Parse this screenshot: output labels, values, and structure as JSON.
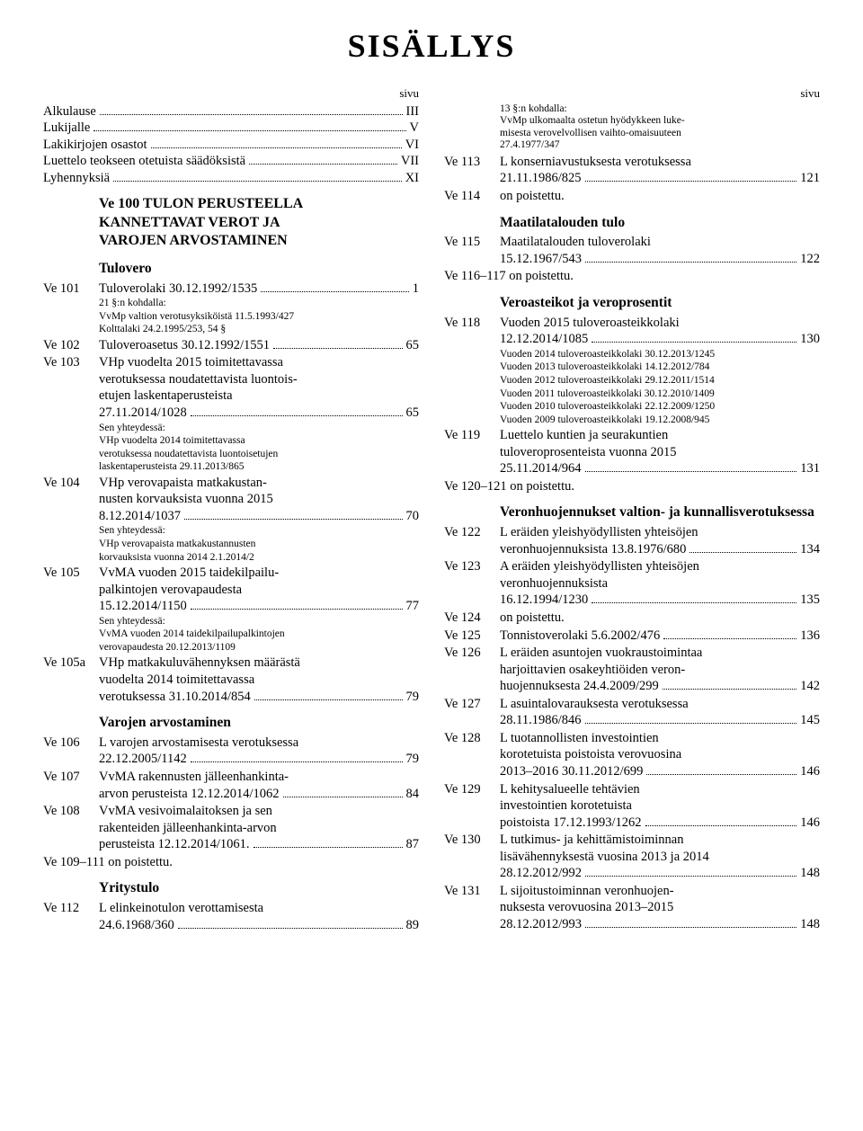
{
  "title": "SISÄLLYS",
  "sivu_label": "sivu",
  "front": [
    {
      "label": "Alkulause",
      "page": "III"
    },
    {
      "label": "Lukijalle",
      "page": "V"
    },
    {
      "label": "Lakikirjojen osastot",
      "page": "VI"
    },
    {
      "label": "Luettelo teokseen otetuista säädöksistä",
      "page": "VII"
    },
    {
      "label": "Lyhennyksiä",
      "page": "XI"
    }
  ],
  "left": {
    "chapter_lines": [
      "Ve 100 TULON PERUSTEELLA",
      "KANNETTAVAT VEROT JA",
      "VAROJEN ARVOSTAMINEN"
    ],
    "groups": [
      {
        "heading": "Tulovero",
        "entries": [
          {
            "code": "Ve 101",
            "lines": [
              "Tuloverolaki 30.12.1992/1535"
            ],
            "page": "1",
            "notes": [
              "21 §:n kohdalla:",
              "VvMp valtion verotusyksiköistä 11.5.1993/427",
              "Kolttalaki 24.2.1995/253, 54 §"
            ]
          },
          {
            "code": "Ve 102",
            "lines": [
              "Tuloveroasetus 30.12.1992/1551"
            ],
            "page": "65"
          },
          {
            "code": "Ve 103",
            "lines": [
              "VHp vuodelta 2015 toimitettavassa",
              "verotuksessa noudatettavista luontois-",
              "etujen laskentaperusteista",
              "27.11.2014/1028"
            ],
            "page": "65",
            "notes": [
              "Sen yhteydessä:",
              "VHp vuodelta 2014 toimitettavassa",
              "verotuksessa noudatettavista luontoisetujen",
              "laskentaperusteista 29.11.2013/865"
            ]
          },
          {
            "code": "Ve 104",
            "lines": [
              "VHp verovapaista matkakustan-",
              "nusten korvauksista vuonna 2015",
              "8.12.2014/1037"
            ],
            "page": "70",
            "notes": [
              "Sen yhteydessä:",
              "VHp verovapaista matkakustannusten",
              "korvauksista vuonna 2014 2.1.2014/2"
            ]
          },
          {
            "code": "Ve 105",
            "lines": [
              "VvMA vuoden 2015 taidekilpailu-",
              "palkintojen verovapaudesta",
              "15.12.2014/1150"
            ],
            "page": "77",
            "notes": [
              "Sen yhteydessä:",
              "VvMA vuoden 2014 taidekilpailupalkintojen",
              "verovapaudesta 20.12.2013/1109"
            ]
          },
          {
            "code": "Ve 105a",
            "lines": [
              "VHp matkakuluvähennyksen määrästä",
              "vuodelta 2014 toimitettavassa",
              "verotuksessa 31.10.2014/854"
            ],
            "page": "79"
          }
        ]
      },
      {
        "heading": "Varojen arvostaminen",
        "entries": [
          {
            "code": "Ve 106",
            "lines": [
              "L varojen arvostamisesta verotuksessa",
              "22.12.2005/1142"
            ],
            "page": "79"
          },
          {
            "code": "Ve 107",
            "lines": [
              "VvMA rakennusten jälleenhankinta-",
              "arvon perusteista 12.12.2014/1062"
            ],
            "page": "84"
          },
          {
            "code": "Ve 108",
            "lines": [
              "VvMA vesivoimalaitoksen ja sen",
              "rakenteiden jälleenhankinta-arvon",
              "perusteista 12.12.2014/1061."
            ],
            "page": "87"
          },
          {
            "removed": "Ve 109–111 on poistettu."
          }
        ]
      },
      {
        "heading": "Yritystulo",
        "entries": [
          {
            "code": "Ve 112",
            "lines": [
              "L elinkeinotulon verottamisesta",
              "24.6.1968/360"
            ],
            "page": "89"
          }
        ]
      }
    ]
  },
  "right": {
    "top_note": [
      "13 §:n kohdalla:",
      "VvMp ulkomaalta ostetun hyödykkeen luke-",
      "misesta verovelvollisen vaihto-omaisuuteen",
      "27.4.1977/347"
    ],
    "groups": [
      {
        "entries": [
          {
            "code": "Ve 113",
            "lines": [
              "L konserniavustuksesta verotuksessa",
              "21.11.1986/825"
            ],
            "page": "121"
          },
          {
            "code": "Ve 114",
            "lines": [
              "on poistettu."
            ]
          }
        ]
      },
      {
        "heading": "Maatilatalouden tulo",
        "entries": [
          {
            "code": "Ve 115",
            "lines": [
              "Maatilatalouden tuloverolaki",
              "15.12.1967/543"
            ],
            "page": "122"
          },
          {
            "removed": "Ve 116–117  on poistettu."
          }
        ]
      },
      {
        "heading": "Veroasteikot ja veroprosentit",
        "entries": [
          {
            "code": "Ve 118",
            "lines": [
              "Vuoden 2015 tuloveroasteikkolaki",
              "12.12.2014/1085"
            ],
            "page": "130",
            "notes": [
              "Vuoden 2014 tuloveroasteikkolaki 30.12.2013/1245",
              "Vuoden 2013 tuloveroasteikkolaki 14.12.2012/784",
              "Vuoden 2012 tuloveroasteikkolaki 29.12.2011/1514",
              "Vuoden 2011 tuloveroasteikkolaki 30.12.2010/1409",
              "Vuoden 2010 tuloveroasteikkolaki 22.12.2009/1250",
              "Vuoden 2009 tuloveroasteikkolaki 19.12.2008/945"
            ]
          },
          {
            "code": "Ve 119",
            "lines": [
              "Luettelo kuntien ja seurakuntien",
              "tuloveroprosenteista vuonna 2015",
              "25.11.2014/964"
            ],
            "page": "131"
          },
          {
            "removed": "Ve 120–121 on poistettu."
          }
        ]
      },
      {
        "heading": "Veronhuojennukset valtion- ja kunnallisverotuksessa",
        "entries": [
          {
            "code": "Ve 122",
            "lines": [
              "L eräiden yleishyödyllisten yhteisöjen",
              "veronhuojennuksista 13.8.1976/680"
            ],
            "page": "134"
          },
          {
            "code": "Ve 123",
            "lines": [
              "A eräiden yleishyödyllisten yhteisöjen",
              "veronhuojennuksista",
              "16.12.1994/1230"
            ],
            "page": "135"
          },
          {
            "code": "Ve 124",
            "lines": [
              "on poistettu."
            ]
          },
          {
            "code": "Ve 125",
            "lines": [
              "Tonnistoverolaki 5.6.2002/476"
            ],
            "page": "136"
          },
          {
            "code": "Ve 126",
            "lines": [
              "L eräiden asuntojen vuokraustoimintaa",
              "harjoittavien osakeyhtiöiden veron-",
              "huojennuksesta 24.4.2009/299"
            ],
            "page": "142"
          },
          {
            "code": "Ve 127",
            "lines": [
              "L asuintalovarauksesta verotuksessa",
              "28.11.1986/846"
            ],
            "page": "145"
          },
          {
            "code": "Ve 128",
            "lines": [
              "L tuotannollisten investointien",
              "korotetuista poistoista verovuosina",
              "2013–2016 30.11.2012/699"
            ],
            "page": "146"
          },
          {
            "code": "Ve 129",
            "lines": [
              "L kehitysalueelle tehtävien",
              "investointien korotetuista",
              "poistoista 17.12.1993/1262"
            ],
            "page": "146"
          },
          {
            "code": "Ve 130",
            "lines": [
              "L tutkimus- ja kehittämistoiminnan",
              "lisävähennyksestä vuosina 2013 ja 2014",
              "28.12.2012/992"
            ],
            "page": "148"
          },
          {
            "code": "Ve 131",
            "lines": [
              "L sijoitustoiminnan veronhuojen-",
              "nuksesta verovuosina 2013–2015",
              "28.12.2012/993"
            ],
            "page": "148"
          }
        ]
      }
    ]
  }
}
